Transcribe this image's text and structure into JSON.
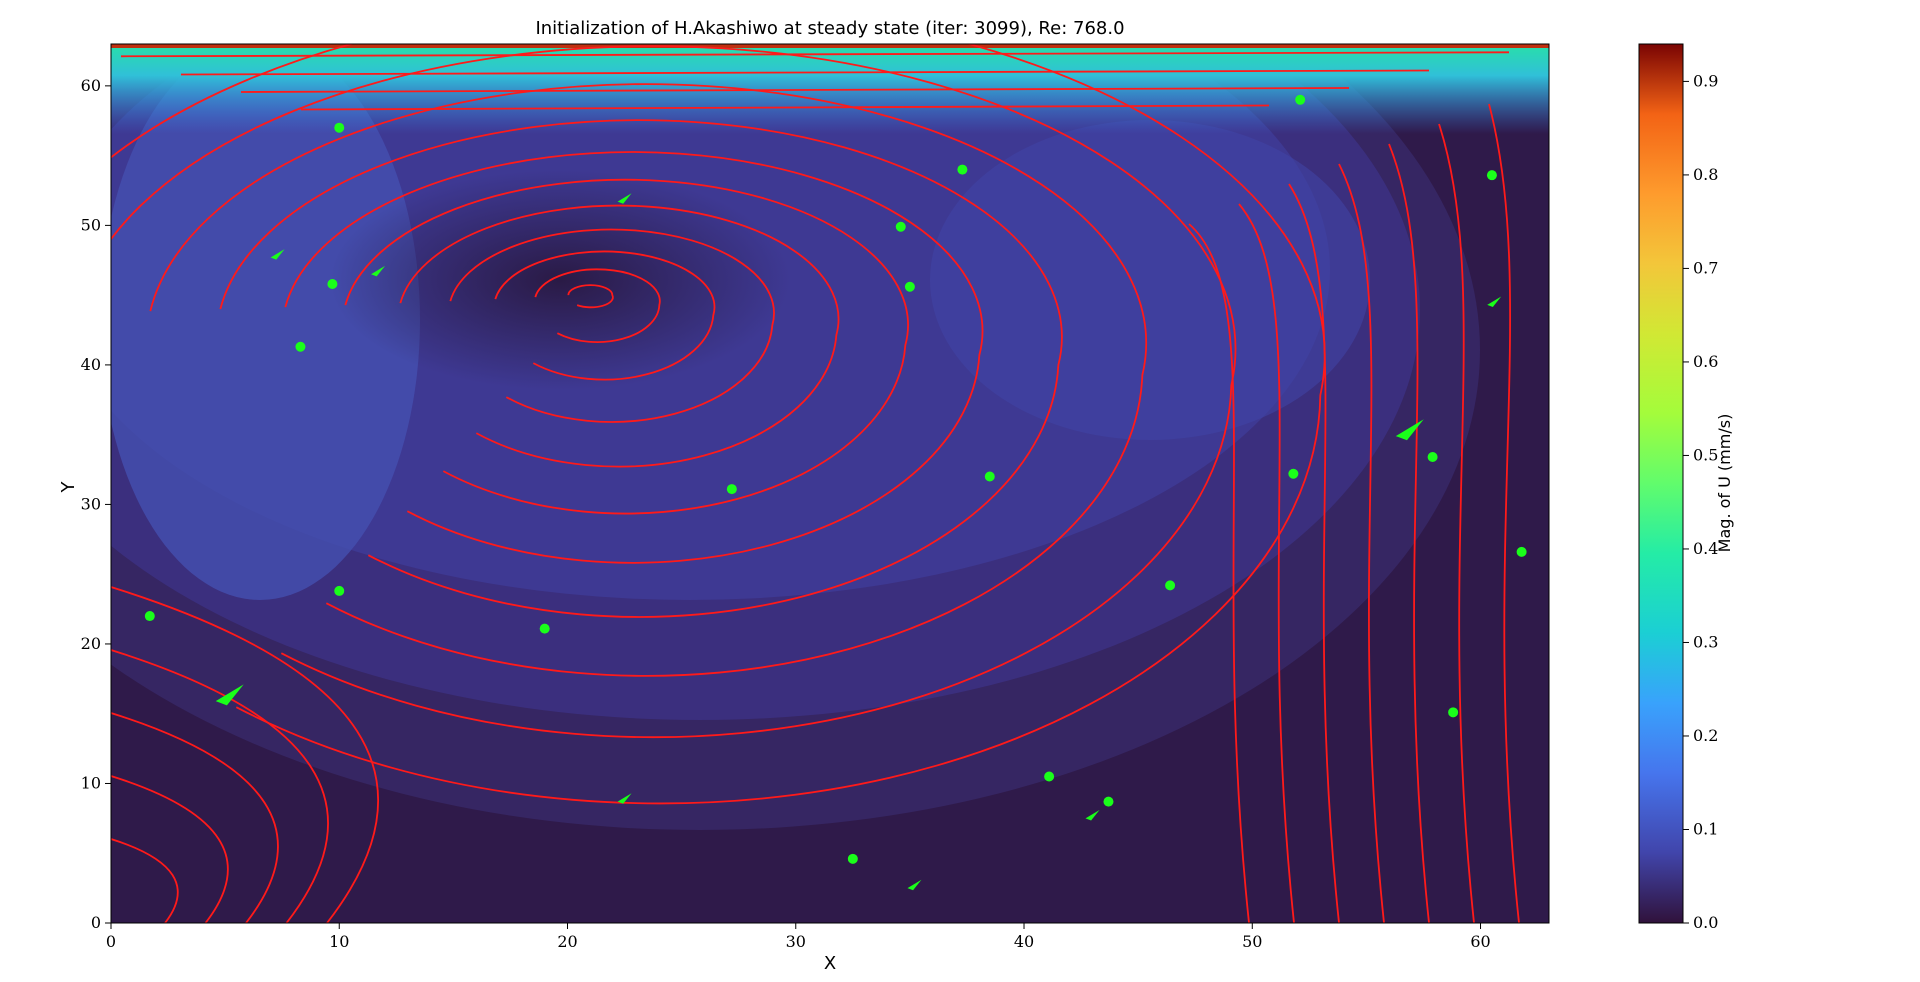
{
  "chart_data": {
    "type": "contour-streamplot",
    "title": "Initialization of H.Akashiwo at steady state (iter: 3099), Re: 768.0",
    "xlabel": "X",
    "ylabel": "Y",
    "xlim": [
      0,
      63
    ],
    "ylim": [
      0,
      63
    ],
    "x_ticks": [
      0,
      10,
      20,
      30,
      40,
      50,
      60
    ],
    "y_ticks": [
      0,
      10,
      20,
      30,
      40,
      50,
      60
    ],
    "colorbar": {
      "label": "Mag. of U (mm/s)",
      "range": [
        0.0,
        0.94
      ],
      "ticks": [
        "0.0",
        "0.1",
        "0.2",
        "0.3",
        "0.4",
        "0.5",
        "0.6",
        "0.7",
        "0.8",
        "0.9"
      ],
      "colormap": "turbo"
    },
    "vortex_center": [
      21,
      45
    ],
    "lid_velocity_max": 0.94,
    "streamline_color": "#ff1a1a",
    "particle_color": "#1aff1a",
    "particles": [
      [
        10,
        57
      ],
      [
        9.7,
        45.8
      ],
      [
        8.3,
        41.3
      ],
      [
        1.7,
        22
      ],
      [
        10,
        23.8
      ],
      [
        19,
        21.1
      ],
      [
        27.2,
        31.1
      ],
      [
        34.6,
        49.9
      ],
      [
        35,
        45.6
      ],
      [
        37.3,
        54
      ],
      [
        38.5,
        32
      ],
      [
        46.4,
        24.2
      ],
      [
        51.8,
        32.2
      ],
      [
        52.1,
        59
      ],
      [
        57.9,
        33.4
      ],
      [
        58.8,
        15.1
      ],
      [
        60.5,
        53.6
      ],
      [
        61.8,
        26.6
      ],
      [
        41.1,
        10.5
      ],
      [
        43.7,
        8.7
      ],
      [
        32.5,
        4.6
      ]
    ],
    "particle_arrows": [
      [
        5.2,
        16.5
      ],
      [
        56.9,
        35.5
      ],
      [
        22.5,
        52
      ],
      [
        7.3,
        48
      ],
      [
        11.7,
        46.8
      ],
      [
        60.6,
        44.6
      ],
      [
        22.5,
        9
      ],
      [
        35.2,
        2.8
      ],
      [
        43,
        7.8
      ]
    ]
  }
}
